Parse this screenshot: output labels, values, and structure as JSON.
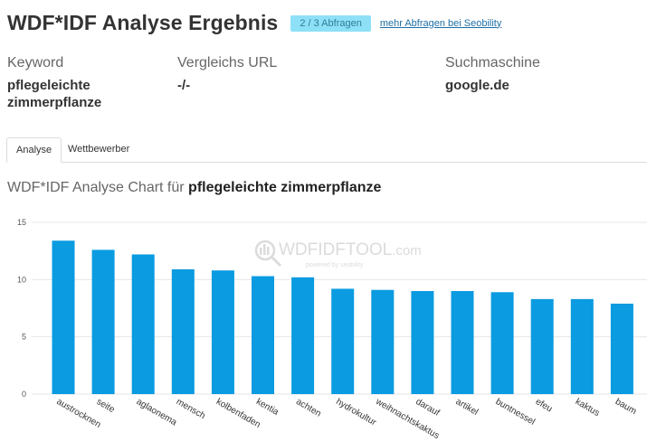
{
  "header": {
    "title": "WDF*IDF Analyse Ergebnis",
    "badge": "2 / 3 Abfragen",
    "more_link": "mehr Abfragen bei Seobility"
  },
  "meta": {
    "keyword_label": "Keyword",
    "keyword_value_line1": "pflegeleichte",
    "keyword_value_line2": "zimmerpflanze",
    "url_label": "Vergleichs URL",
    "url_value": "-/-",
    "engine_label": "Suchmaschine",
    "engine_value": "google.de"
  },
  "tabs": [
    {
      "label": "Analyse",
      "active": true
    },
    {
      "label": "Wettbewerber",
      "active": false
    }
  ],
  "chart_heading": {
    "prefix": "WDF*IDF Analyse Chart für ",
    "keyword": "pflegeleichte zimmerpflanze"
  },
  "watermark": {
    "brand": "WDFIDFTOOL",
    "suffix": ".com",
    "sub": "powered by seobility"
  },
  "colors": {
    "bar": "#0a9be0",
    "badge_bg": "#8ee0f7",
    "link": "#1d6fa5"
  },
  "chart_data": {
    "type": "bar",
    "title": "",
    "xlabel": "",
    "ylabel": "",
    "ylim": [
      0,
      15
    ],
    "yticks": [
      0,
      5,
      10,
      15
    ],
    "grid": true,
    "categories": [
      "austrocknen",
      "seite",
      "aglaonema",
      "mensch",
      "kolbenfaden",
      "kentia",
      "achten",
      "hydrokultur",
      "weihnachtskaktus",
      "darauf",
      "artikel",
      "buntnessel",
      "efeu",
      "kaktus",
      "baum"
    ],
    "values": [
      13.4,
      12.6,
      12.2,
      10.9,
      10.8,
      10.3,
      10.2,
      9.2,
      9.1,
      9.0,
      9.0,
      8.9,
      8.3,
      8.3,
      7.9
    ]
  }
}
